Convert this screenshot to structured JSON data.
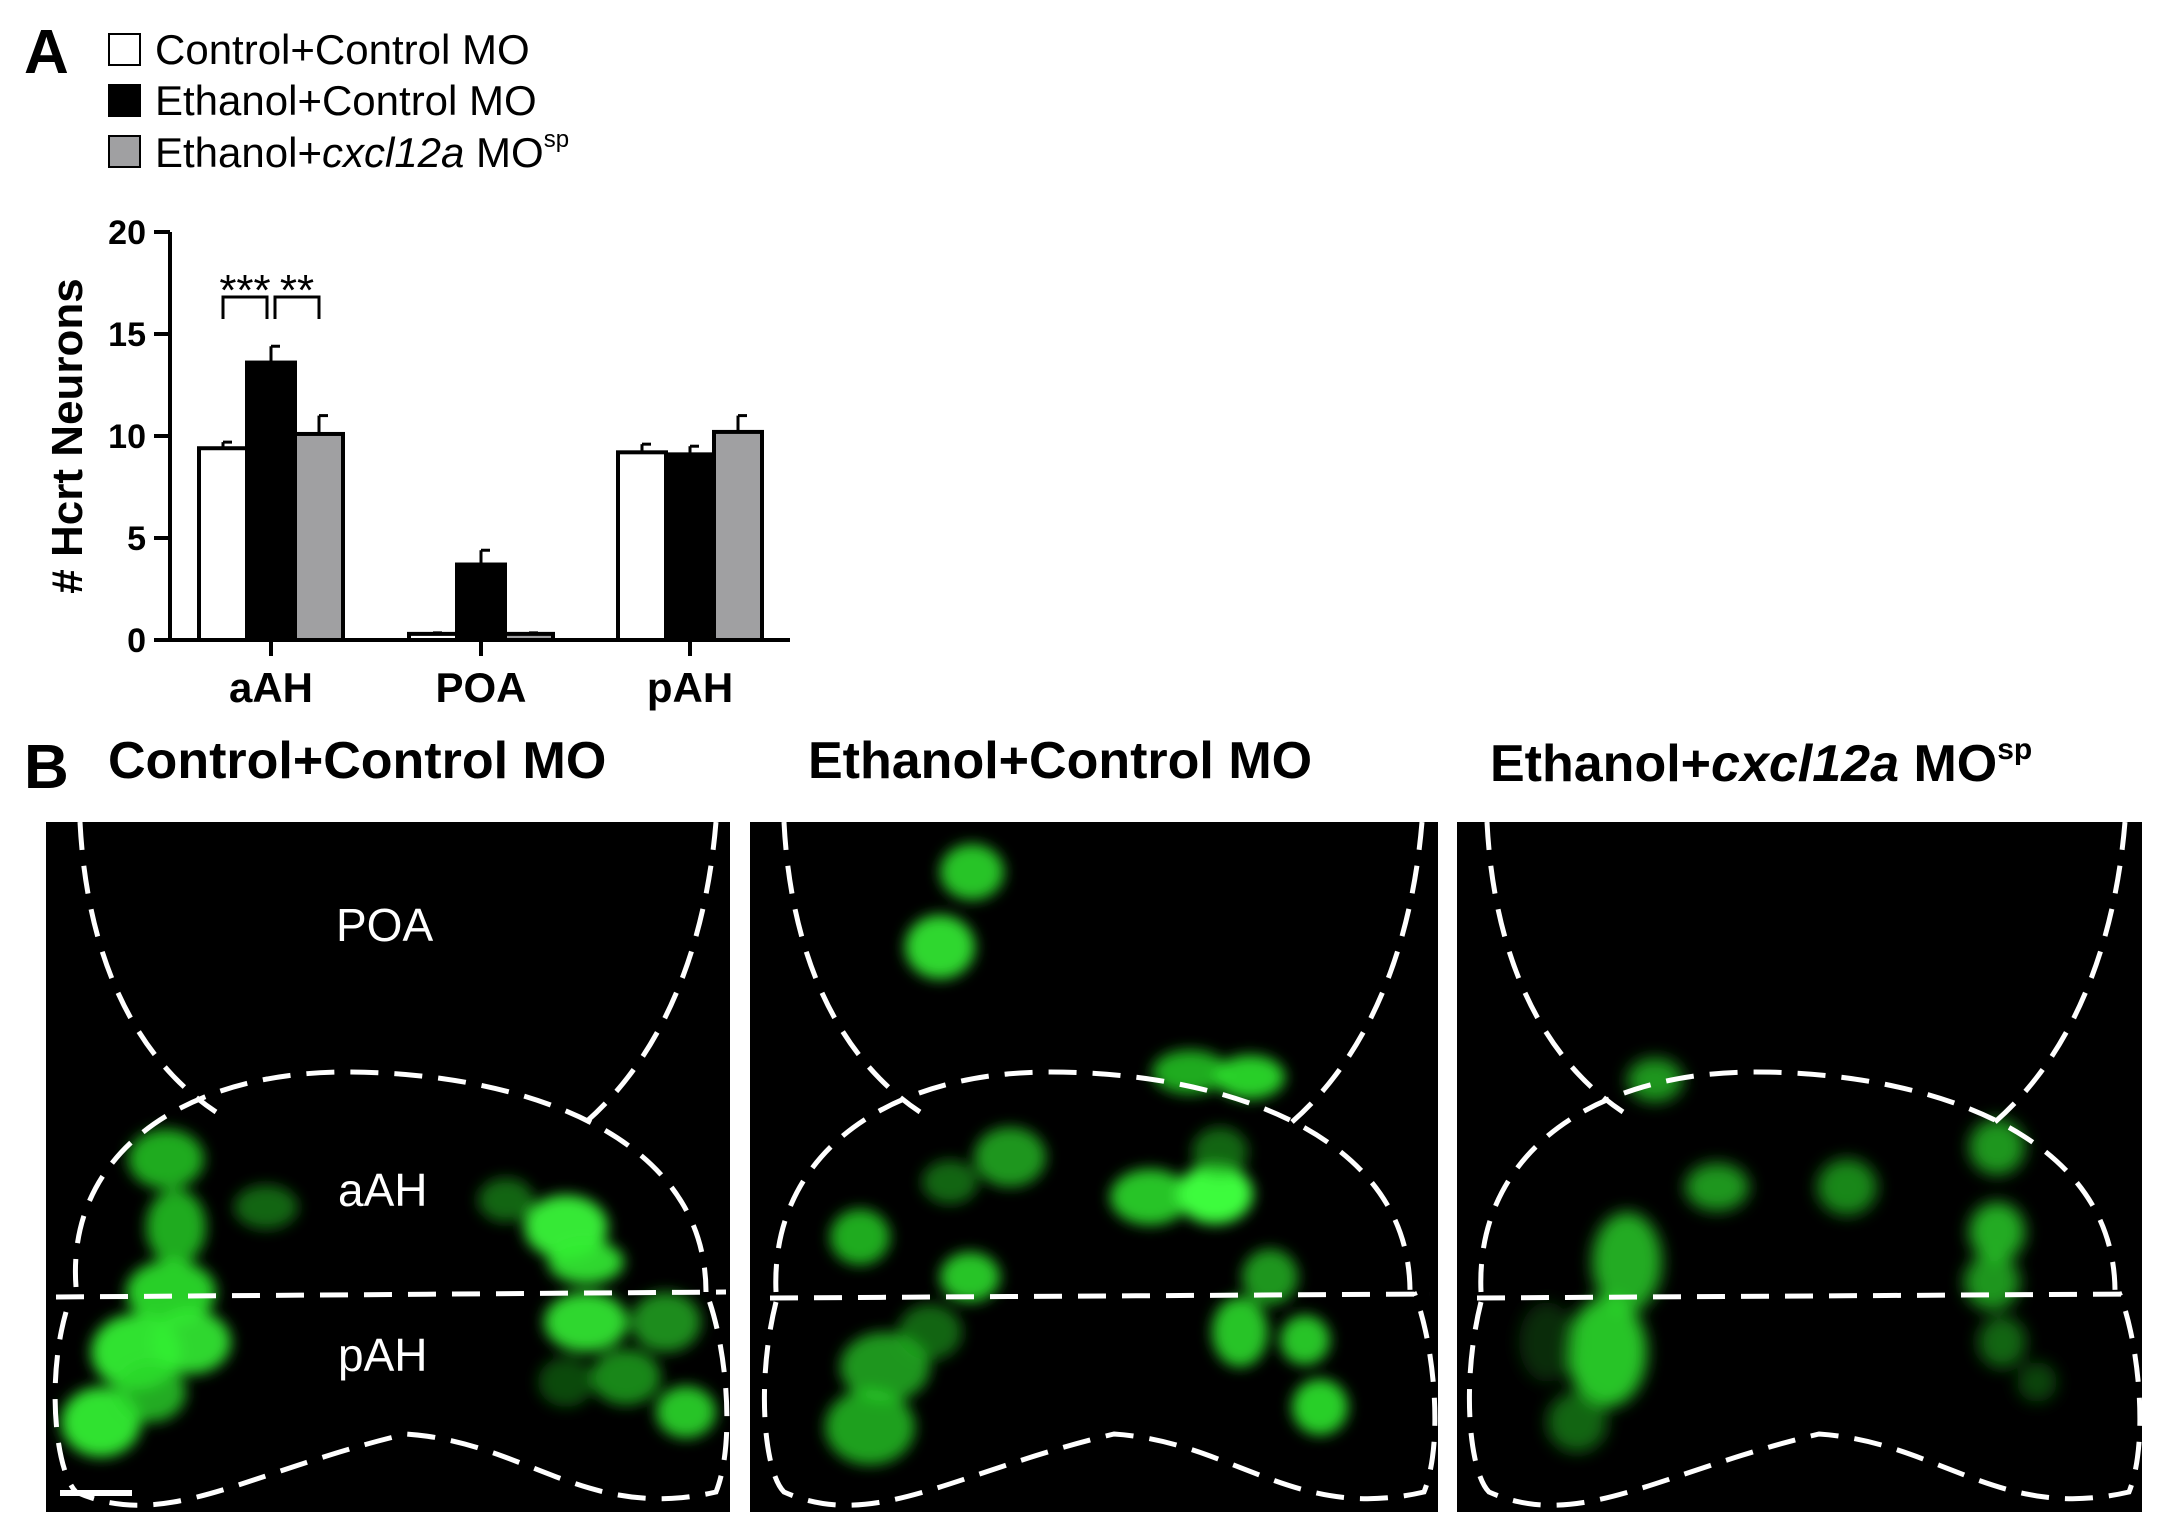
{
  "panels": {
    "a": "A",
    "b": "B"
  },
  "legend": {
    "items": [
      {
        "prefix": "Control+Control MO",
        "gene": "",
        "suffix": "",
        "sup": "",
        "color": "#ffffff"
      },
      {
        "prefix": "Ethanol+Control MO",
        "gene": "",
        "suffix": "",
        "sup": "",
        "color": "#000000"
      },
      {
        "prefix": "Ethanol+",
        "gene": "cxcl12a",
        "suffix": " MO",
        "sup": "sp",
        "color": "#a0a0a2"
      }
    ]
  },
  "chart_data": {
    "type": "bar",
    "ylabel": "# Hcrt Neurons",
    "ylim": [
      0,
      20
    ],
    "yticks": [
      0,
      5,
      10,
      15,
      20
    ],
    "categories": [
      "aAH",
      "POA",
      "pAH"
    ],
    "series": [
      {
        "name": "Control+Control MO",
        "color": "#ffffff",
        "values": [
          9.4,
          0.3,
          9.2
        ],
        "errors": [
          0.3,
          0.05,
          0.4
        ]
      },
      {
        "name": "Ethanol+Control MO",
        "color": "#000000",
        "values": [
          13.6,
          3.7,
          9.1
        ],
        "errors": [
          0.8,
          0.7,
          0.4
        ]
      },
      {
        "name": "Ethanol+cxcl12a MOsp",
        "color": "#a0a0a2",
        "values": [
          10.1,
          0.3,
          10.2
        ],
        "errors": [
          0.9,
          0.05,
          0.8
        ]
      }
    ],
    "significance": [
      {
        "category": "aAH",
        "from": 0,
        "to": 1,
        "label": "***"
      },
      {
        "category": "aAH",
        "from": 1,
        "to": 2,
        "label": "**"
      }
    ]
  },
  "images": [
    {
      "title_prefix": "Control+Control MO",
      "gene": "",
      "title_suffix": "",
      "sup": "",
      "labels": {
        "poa": "POA",
        "aah": "aAH",
        "pah": "pAH"
      }
    },
    {
      "title_prefix": "Ethanol+Control MO",
      "gene": "",
      "title_suffix": "",
      "sup": ""
    },
    {
      "title_prefix": "Ethanol+",
      "gene": "cxcl12a",
      "title_suffix": " MO",
      "sup": "sp"
    }
  ]
}
